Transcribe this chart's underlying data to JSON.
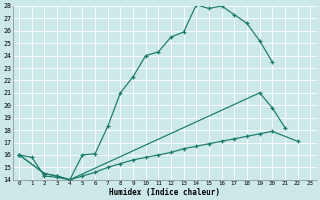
{
  "xlabel": "Humidex (Indice chaleur)",
  "bg_color": "#cce8e8",
  "grid_color": "#ffffff",
  "line_color": "#1a7a6a",
  "xlim": [
    -0.5,
    23.5
  ],
  "ylim": [
    14,
    28
  ],
  "xticks": [
    0,
    1,
    2,
    3,
    4,
    5,
    6,
    7,
    8,
    9,
    10,
    11,
    12,
    13,
    14,
    15,
    16,
    17,
    18,
    19,
    20,
    21,
    22,
    23
  ],
  "yticks": [
    14,
    15,
    16,
    17,
    18,
    19,
    20,
    21,
    22,
    23,
    24,
    25,
    26,
    27,
    28
  ],
  "curve1": [
    [
      0,
      16.0
    ],
    [
      1,
      15.8
    ],
    [
      2,
      14.3
    ],
    [
      3,
      14.2
    ],
    [
      4,
      14.0
    ],
    [
      5,
      16.0
    ],
    [
      6,
      16.1
    ],
    [
      7,
      18.3
    ],
    [
      8,
      21.0
    ],
    [
      9,
      22.3
    ],
    [
      10,
      24.0
    ],
    [
      11,
      24.3
    ],
    [
      12,
      25.5
    ],
    [
      13,
      25.9
    ],
    [
      14,
      28.1
    ],
    [
      15,
      27.8
    ],
    [
      16,
      28.0
    ],
    [
      17,
      27.3
    ],
    [
      18,
      26.6
    ],
    [
      19,
      25.2
    ],
    [
      20,
      23.5
    ]
  ],
  "curve2": [
    [
      0,
      16.0
    ],
    [
      2,
      14.5
    ],
    [
      3,
      14.3
    ],
    [
      4,
      14.0
    ],
    [
      19,
      21.0
    ],
    [
      20,
      19.8
    ],
    [
      21,
      18.2
    ]
  ],
  "curve3": [
    [
      0,
      16.0
    ],
    [
      2,
      14.5
    ],
    [
      3,
      14.3
    ],
    [
      4,
      14.0
    ],
    [
      5,
      14.3
    ],
    [
      6,
      14.6
    ],
    [
      7,
      15.0
    ],
    [
      8,
      15.3
    ],
    [
      9,
      15.6
    ],
    [
      10,
      15.8
    ],
    [
      11,
      16.0
    ],
    [
      12,
      16.2
    ],
    [
      13,
      16.5
    ],
    [
      14,
      16.7
    ],
    [
      15,
      16.9
    ],
    [
      16,
      17.1
    ],
    [
      17,
      17.3
    ],
    [
      18,
      17.5
    ],
    [
      19,
      17.7
    ],
    [
      20,
      17.9
    ],
    [
      22,
      17.1
    ]
  ]
}
